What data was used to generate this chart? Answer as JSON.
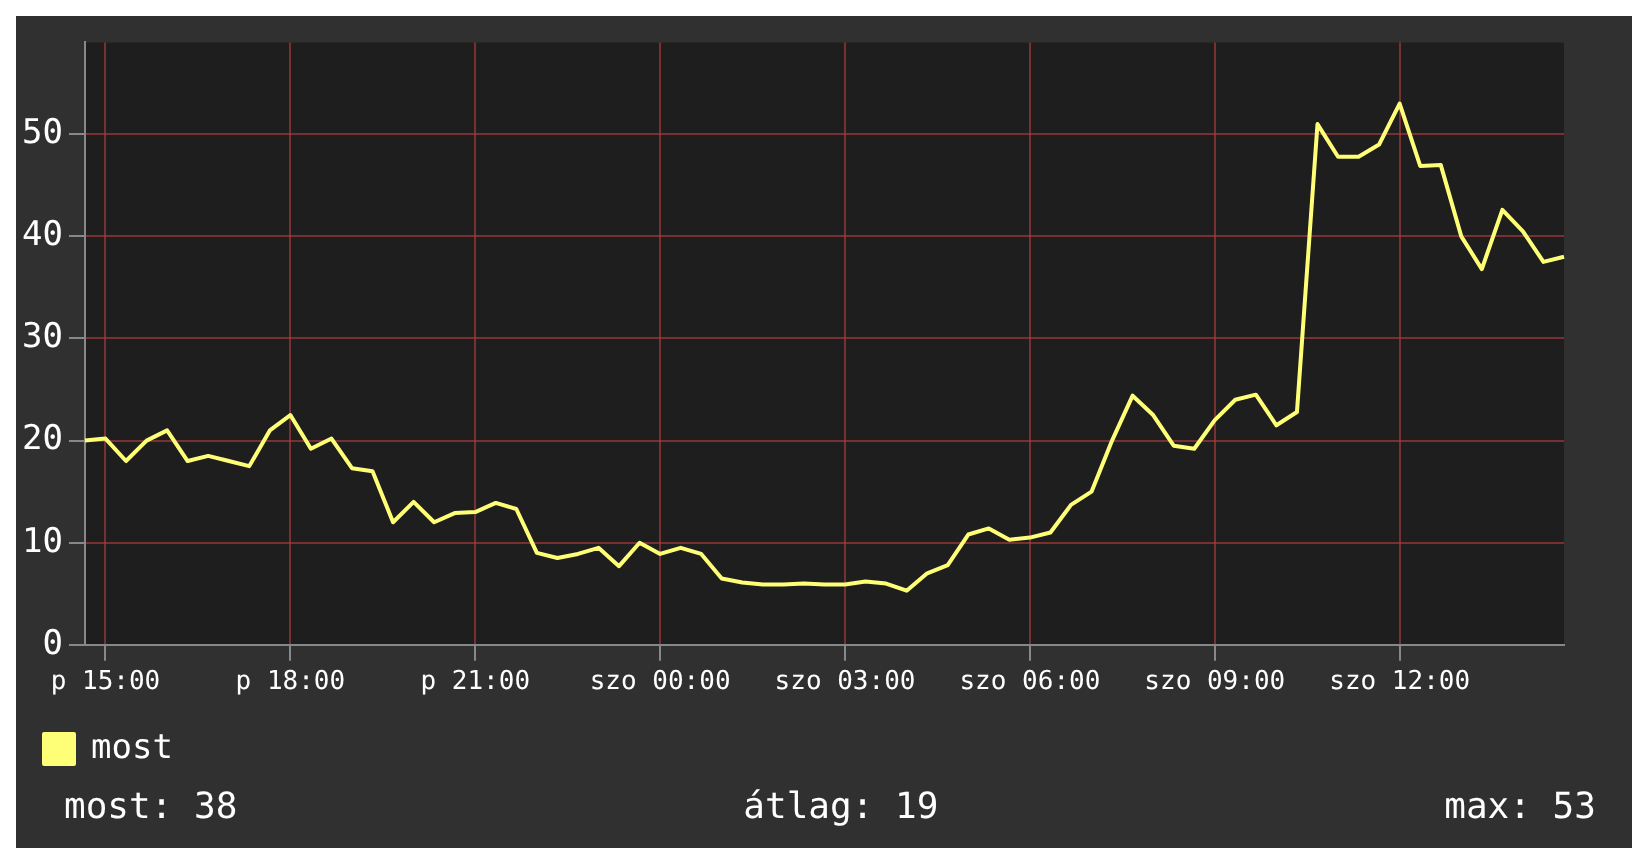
{
  "chart_data": {
    "type": "line",
    "categories": [
      null,
      "p 15:00",
      null,
      null,
      null,
      null,
      null,
      null,
      null,
      null,
      "p 18:00",
      null,
      null,
      null,
      null,
      null,
      null,
      null,
      null,
      "p 21:00",
      null,
      null,
      null,
      null,
      null,
      null,
      null,
      null,
      "szo 00:00",
      null,
      null,
      null,
      null,
      null,
      null,
      null,
      null,
      "szo 03:00",
      null,
      null,
      null,
      null,
      null,
      null,
      null,
      null,
      "szo 06:00",
      null,
      null,
      null,
      null,
      null,
      null,
      null,
      null,
      "szo 09:00",
      null,
      null,
      null,
      null,
      null,
      null,
      null,
      null,
      "szo 12:00",
      null,
      null,
      null,
      null,
      null,
      null,
      null,
      null
    ],
    "ylim": [
      0,
      59
    ],
    "yticks": [
      0,
      10,
      20,
      30,
      40,
      50
    ],
    "grid": true,
    "legend": "bottom",
    "marker": "none",
    "annotations": [
      "most: 38",
      "átlag: 19",
      "max: 53"
    ],
    "series": [
      {
        "name": "most",
        "color": "#ffff77",
        "values": [
          20,
          20.2,
          18,
          20,
          21,
          18,
          18.5,
          18,
          17.5,
          21,
          22.5,
          19.2,
          20.2,
          17.3,
          17,
          12,
          14,
          12,
          12.9,
          13,
          13.9,
          13.3,
          9,
          8.5,
          8.9,
          9.5,
          7.7,
          10,
          8.9,
          9.5,
          8.9,
          6.5,
          6.1,
          5.9,
          5.9,
          6,
          5.9,
          5.9,
          6.2,
          6,
          5.3,
          7,
          7.8,
          10.8,
          11.4,
          10.3,
          10.5,
          11,
          13.7,
          15,
          20,
          24.4,
          22.5,
          19.5,
          19.2,
          22,
          24,
          24.5,
          21.5,
          22.8,
          51,
          47.8,
          47.8,
          49,
          53,
          46.9,
          47,
          40,
          36.8,
          42.6,
          40.5,
          37.5,
          38
        ]
      }
    ]
  }
}
